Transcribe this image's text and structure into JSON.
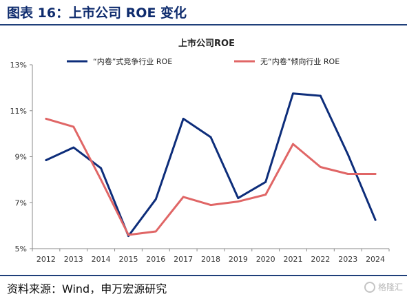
{
  "figure": {
    "title": "图表 16：上市公司 ROE 变化",
    "source": "资料来源：Wind，申万宏源研究",
    "watermark": "格隆汇"
  },
  "chart_data": {
    "type": "line",
    "title": "上市公司ROE",
    "x": [
      "2012",
      "2013",
      "2014",
      "2015",
      "2016",
      "2017",
      "2018",
      "2019",
      "2020",
      "2021",
      "2022",
      "2023",
      "2024"
    ],
    "ylim": [
      5,
      13
    ],
    "yticks": [
      "5%",
      "7%",
      "9%",
      "11%",
      "13%"
    ],
    "ytick_values": [
      5,
      7,
      9,
      11,
      13
    ],
    "grid": false,
    "legend_position": "top",
    "series": [
      {
        "name": "“内卷”式竞争行业 ROE",
        "color": "#0d2d7a",
        "values": [
          8.85,
          9.4,
          8.5,
          5.55,
          7.15,
          10.65,
          9.85,
          7.2,
          7.9,
          11.75,
          11.65,
          9.1,
          6.25
        ]
      },
      {
        "name": "无“内卷”倾向行业 ROE",
        "color": "#e06666",
        "values": [
          10.65,
          10.3,
          8.0,
          5.6,
          5.75,
          7.25,
          6.9,
          7.05,
          7.35,
          9.55,
          8.55,
          8.25,
          8.25
        ]
      }
    ]
  }
}
